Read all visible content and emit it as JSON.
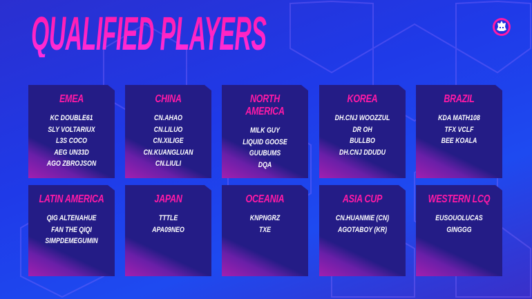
{
  "title": "QUALIFIED PLAYERS",
  "logo_icon": "esports-crown-gear-logo",
  "colors": {
    "accent": "#ff1aa6",
    "card": "#241c86",
    "background": "#1f3ae8"
  },
  "regions": [
    {
      "name": "EMEA",
      "players": [
        "KC DOUBLE61",
        "SLY VOLTARIUX",
        "L3S COCO",
        "AEG UN33D",
        "AGO ZBROJSON"
      ]
    },
    {
      "name": "CHINA",
      "players": [
        "CN.AHAO",
        "CN.LILUO",
        "CN.XILIGE",
        "CN.KUANGLUAN",
        "CN.LIULI"
      ]
    },
    {
      "name": "NORTH AMERICA",
      "players": [
        "MILK GUY",
        "LIQUID GOOSE",
        "GUUBUMS",
        "DQA"
      ]
    },
    {
      "name": "KOREA",
      "players": [
        "DH.CNJ WOOZZUL",
        "DR OH",
        "BULLBO",
        "DH.CNJ DDUDU"
      ]
    },
    {
      "name": "BRAZIL",
      "players": [
        "KDA MATH108",
        "TFX VCLF",
        "BEE KOALA"
      ]
    },
    {
      "name": "LATIN AMERICA",
      "players": [
        "QIG ALTENAHUE",
        "FAN THE QIQI",
        "SIMPDEMEGUMIN"
      ]
    },
    {
      "name": "JAPAN",
      "players": [
        "TTTLE",
        "APA09NEO"
      ]
    },
    {
      "name": "OCEANIA",
      "players": [
        "KNPNGRZ",
        "TXE"
      ]
    },
    {
      "name": "ASIA CUP",
      "players": [
        "CN.HUANMIE (CN)",
        "AGOTABOY (KR)"
      ]
    },
    {
      "name": "WESTERN LCQ",
      "players": [
        "EUSOUOLUCAS",
        "GINGGG"
      ]
    }
  ]
}
